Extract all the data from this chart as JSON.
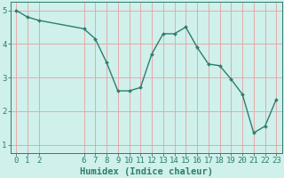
{
  "x": [
    0,
    1,
    2,
    6,
    7,
    8,
    9,
    10,
    11,
    12,
    13,
    14,
    15,
    16,
    17,
    18,
    19,
    20,
    21,
    22,
    23
  ],
  "y": [
    5.0,
    4.8,
    4.7,
    4.45,
    4.15,
    3.45,
    2.6,
    2.6,
    2.7,
    3.7,
    4.3,
    4.3,
    4.5,
    3.9,
    3.4,
    3.35,
    2.95,
    2.5,
    1.35,
    1.55,
    2.35
  ],
  "line_color": "#2e7d6e",
  "marker": "D",
  "marker_size": 2.0,
  "bg_color": "#cff0eb",
  "grid_color": "#e8a0a0",
  "xlabel": "Humidex (Indice chaleur)",
  "xlim": [
    -0.5,
    23.5
  ],
  "ylim": [
    0.75,
    5.25
  ],
  "yticks": [
    1,
    2,
    3,
    4,
    5
  ],
  "xticks": [
    0,
    1,
    2,
    6,
    7,
    8,
    9,
    10,
    11,
    12,
    13,
    14,
    15,
    16,
    17,
    18,
    19,
    20,
    21,
    22,
    23
  ],
  "xtick_labels": [
    "0",
    "1",
    "2",
    "6",
    "7",
    "8",
    "9",
    "10",
    "11",
    "12",
    "13",
    "14",
    "15",
    "16",
    "17",
    "18",
    "19",
    "20",
    "21",
    "22",
    "23"
  ],
  "xlabel_fontsize": 7.5,
  "tick_fontsize": 6.5,
  "linewidth": 1.0
}
